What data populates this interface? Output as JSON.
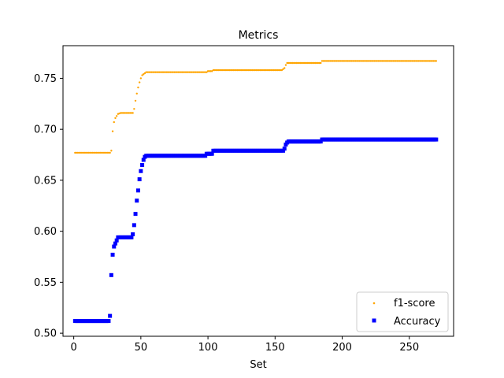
{
  "chart_data": {
    "type": "scatter",
    "title": "Metrics",
    "xlabel": "Set",
    "ylabel": "",
    "xlim": [
      -8,
      283
    ],
    "ylim": [
      0.497,
      0.782
    ],
    "x_ticks": [
      0,
      50,
      100,
      150,
      200,
      250
    ],
    "y_ticks": [
      0.5,
      0.55,
      0.6,
      0.65,
      0.7,
      0.75
    ],
    "grid": false,
    "legend_position": "lower-right",
    "x_range": [
      1,
      270
    ],
    "series": [
      {
        "name": "f1-score",
        "color": "#ffa500",
        "marker": "small-point",
        "points": [
          [
            1,
            0.677
          ],
          [
            27,
            0.677
          ],
          [
            28,
            0.679
          ],
          [
            29,
            0.698
          ],
          [
            30,
            0.707
          ],
          [
            31,
            0.711
          ],
          [
            32,
            0.713
          ],
          [
            33,
            0.715
          ],
          [
            35,
            0.716
          ],
          [
            44,
            0.716
          ],
          [
            45,
            0.72
          ],
          [
            46,
            0.728
          ],
          [
            47,
            0.735
          ],
          [
            48,
            0.741
          ],
          [
            49,
            0.746
          ],
          [
            50,
            0.75
          ],
          [
            51,
            0.753
          ],
          [
            53,
            0.755
          ],
          [
            54,
            0.756
          ],
          [
            99,
            0.756
          ],
          [
            100,
            0.757
          ],
          [
            103,
            0.757
          ],
          [
            104,
            0.758
          ],
          [
            155,
            0.758
          ],
          [
            156,
            0.759
          ],
          [
            157,
            0.76
          ],
          [
            158,
            0.763
          ],
          [
            159,
            0.765
          ],
          [
            184,
            0.765
          ],
          [
            185,
            0.767
          ],
          [
            270,
            0.767
          ]
        ]
      },
      {
        "name": "Accuracy",
        "color": "#0000ff",
        "marker": "square",
        "points": [
          [
            1,
            0.512
          ],
          [
            26,
            0.512
          ],
          [
            27,
            0.517
          ],
          [
            28,
            0.557
          ],
          [
            29,
            0.577
          ],
          [
            30,
            0.585
          ],
          [
            31,
            0.588
          ],
          [
            32,
            0.591
          ],
          [
            33,
            0.594
          ],
          [
            43,
            0.594
          ],
          [
            44,
            0.597
          ],
          [
            45,
            0.606
          ],
          [
            46,
            0.617
          ],
          [
            47,
            0.63
          ],
          [
            48,
            0.64
          ],
          [
            49,
            0.651
          ],
          [
            50,
            0.659
          ],
          [
            51,
            0.665
          ],
          [
            52,
            0.67
          ],
          [
            53,
            0.673
          ],
          [
            54,
            0.674
          ],
          [
            98,
            0.674
          ],
          [
            99,
            0.676
          ],
          [
            103,
            0.676
          ],
          [
            104,
            0.679
          ],
          [
            156,
            0.679
          ],
          [
            157,
            0.681
          ],
          [
            158,
            0.685
          ],
          [
            159,
            0.687
          ],
          [
            160,
            0.688
          ],
          [
            184,
            0.688
          ],
          [
            185,
            0.69
          ],
          [
            270,
            0.69
          ]
        ]
      }
    ]
  }
}
